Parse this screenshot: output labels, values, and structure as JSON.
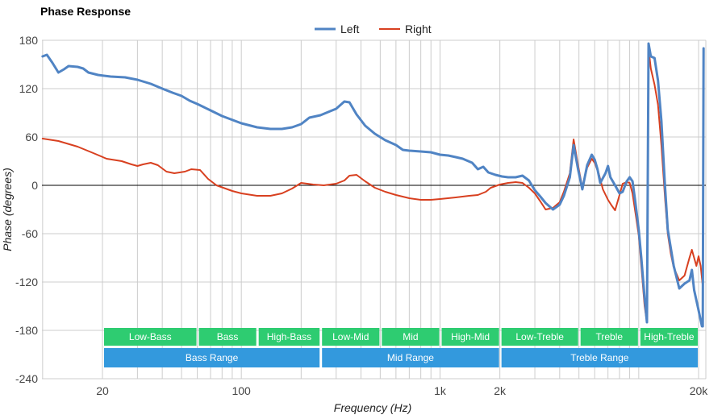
{
  "chart_data": {
    "type": "line",
    "title": "Phase Response",
    "xlabel": "Frequency (Hz)",
    "ylabel": "Phase (degrees)",
    "x_scale": "log",
    "xlim": [
      10,
      22000
    ],
    "ylim": [
      -240,
      180
    ],
    "y_ticks": [
      180,
      120,
      60,
      0,
      -60,
      -120,
      -180,
      -240
    ],
    "x_tick_labels": [
      {
        "value": 20,
        "label": "20"
      },
      {
        "value": 100,
        "label": "100"
      },
      {
        "value": 1000,
        "label": "1k"
      },
      {
        "value": 2000,
        "label": "2k"
      },
      {
        "value": 20000,
        "label": "20k"
      }
    ],
    "legend": {
      "position": "top-center",
      "entries": [
        "Left",
        "Right"
      ]
    },
    "colors": {
      "Left": "#5084c4",
      "Right": "#d84020",
      "treble_low_band": "#2ecc71",
      "range_band": "#3399dd",
      "grid": "#cccccc",
      "zero_line": "#000000"
    },
    "series": [
      {
        "name": "Left",
        "points": [
          [
            10,
            160
          ],
          [
            10.5,
            162
          ],
          [
            11.2,
            152
          ],
          [
            12,
            140
          ],
          [
            12.8,
            144
          ],
          [
            13.5,
            148
          ],
          [
            15,
            147
          ],
          [
            16,
            145
          ],
          [
            17,
            140
          ],
          [
            19,
            137
          ],
          [
            22,
            135
          ],
          [
            26,
            134
          ],
          [
            30,
            131
          ],
          [
            35,
            126
          ],
          [
            40,
            120
          ],
          [
            45,
            115
          ],
          [
            50,
            111
          ],
          [
            55,
            105
          ],
          [
            60,
            101
          ],
          [
            70,
            93
          ],
          [
            80,
            86
          ],
          [
            100,
            77
          ],
          [
            120,
            72
          ],
          [
            140,
            70
          ],
          [
            160,
            70
          ],
          [
            180,
            72
          ],
          [
            200,
            76
          ],
          [
            220,
            84
          ],
          [
            250,
            87
          ],
          [
            280,
            92
          ],
          [
            300,
            95
          ],
          [
            330,
            104
          ],
          [
            350,
            103
          ],
          [
            380,
            88
          ],
          [
            420,
            74
          ],
          [
            470,
            64
          ],
          [
            530,
            56
          ],
          [
            600,
            50
          ],
          [
            650,
            44
          ],
          [
            700,
            43
          ],
          [
            800,
            42
          ],
          [
            900,
            41
          ],
          [
            1000,
            38
          ],
          [
            1100,
            37
          ],
          [
            1200,
            35
          ],
          [
            1300,
            33
          ],
          [
            1450,
            28
          ],
          [
            1550,
            20
          ],
          [
            1650,
            23
          ],
          [
            1750,
            16
          ],
          [
            1900,
            13
          ],
          [
            2050,
            11
          ],
          [
            2200,
            10
          ],
          [
            2400,
            10
          ],
          [
            2600,
            12
          ],
          [
            2800,
            6
          ],
          [
            3000,
            -6
          ],
          [
            3200,
            -14
          ],
          [
            3400,
            -22
          ],
          [
            3700,
            -30
          ],
          [
            4000,
            -24
          ],
          [
            4200,
            -13
          ],
          [
            4500,
            10
          ],
          [
            4700,
            50
          ],
          [
            4950,
            20
          ],
          [
            5200,
            -5
          ],
          [
            5500,
            25
          ],
          [
            5800,
            38
          ],
          [
            6000,
            32
          ],
          [
            6200,
            20
          ],
          [
            6400,
            3
          ],
          [
            6800,
            15
          ],
          [
            7000,
            24
          ],
          [
            7200,
            10
          ],
          [
            7600,
            0
          ],
          [
            8000,
            -10
          ],
          [
            8300,
            -8
          ],
          [
            8700,
            5
          ],
          [
            9000,
            10
          ],
          [
            9300,
            5
          ],
          [
            9600,
            -20
          ],
          [
            10000,
            -55
          ],
          [
            10300,
            -90
          ],
          [
            10700,
            -140
          ],
          [
            11000,
            -170
          ],
          [
            11200,
            176
          ],
          [
            11500,
            160
          ],
          [
            12000,
            158
          ],
          [
            12500,
            130
          ],
          [
            13000,
            80
          ],
          [
            13500,
            5
          ],
          [
            14000,
            -55
          ],
          [
            15000,
            -100
          ],
          [
            16000,
            -128
          ],
          [
            17000,
            -122
          ],
          [
            18000,
            -118
          ],
          [
            18500,
            -105
          ],
          [
            19000,
            -130
          ],
          [
            20000,
            -155
          ],
          [
            20800,
            -175
          ],
          [
            21000,
            -175
          ],
          [
            21200,
            170
          ]
        ]
      },
      {
        "name": "Right",
        "points": [
          [
            10,
            58
          ],
          [
            12,
            55
          ],
          [
            15,
            48
          ],
          [
            18,
            40
          ],
          [
            21,
            33
          ],
          [
            25,
            30
          ],
          [
            28,
            26
          ],
          [
            30,
            24
          ],
          [
            32,
            26
          ],
          [
            35,
            28
          ],
          [
            38,
            25
          ],
          [
            42,
            17
          ],
          [
            46,
            15
          ],
          [
            52,
            17
          ],
          [
            56,
            20
          ],
          [
            62,
            19
          ],
          [
            68,
            8
          ],
          [
            75,
            0
          ],
          [
            90,
            -7
          ],
          [
            100,
            -10
          ],
          [
            120,
            -13
          ],
          [
            140,
            -13
          ],
          [
            160,
            -10
          ],
          [
            180,
            -4
          ],
          [
            200,
            3
          ],
          [
            230,
            1
          ],
          [
            260,
            0
          ],
          [
            300,
            2
          ],
          [
            330,
            6
          ],
          [
            350,
            12
          ],
          [
            380,
            13
          ],
          [
            420,
            5
          ],
          [
            470,
            -3
          ],
          [
            530,
            -8
          ],
          [
            600,
            -12
          ],
          [
            700,
            -16
          ],
          [
            800,
            -18
          ],
          [
            900,
            -18
          ],
          [
            1000,
            -17
          ],
          [
            1200,
            -15
          ],
          [
            1400,
            -13
          ],
          [
            1550,
            -12
          ],
          [
            1700,
            -8
          ],
          [
            1800,
            -3
          ],
          [
            2000,
            1
          ],
          [
            2200,
            3
          ],
          [
            2400,
            4
          ],
          [
            2600,
            3
          ],
          [
            2800,
            -3
          ],
          [
            3000,
            -10
          ],
          [
            3200,
            -20
          ],
          [
            3400,
            -30
          ],
          [
            3700,
            -28
          ],
          [
            4000,
            -21
          ],
          [
            4200,
            -8
          ],
          [
            4500,
            15
          ],
          [
            4700,
            57
          ],
          [
            4950,
            25
          ],
          [
            5200,
            -3
          ],
          [
            5500,
            22
          ],
          [
            5800,
            33
          ],
          [
            6000,
            28
          ],
          [
            6300,
            14
          ],
          [
            6600,
            -5
          ],
          [
            7000,
            -18
          ],
          [
            7300,
            -25
          ],
          [
            7600,
            -31
          ],
          [
            8000,
            -12
          ],
          [
            8300,
            2
          ],
          [
            8700,
            4
          ],
          [
            9000,
            3
          ],
          [
            9300,
            -10
          ],
          [
            9700,
            -40
          ],
          [
            10000,
            -62
          ],
          [
            10300,
            -100
          ],
          [
            10700,
            -150
          ],
          [
            11000,
            -170
          ],
          [
            11200,
            170
          ],
          [
            11500,
            145
          ],
          [
            12000,
            125
          ],
          [
            12500,
            100
          ],
          [
            13000,
            50
          ],
          [
            13600,
            -20
          ],
          [
            14000,
            -60
          ],
          [
            14500,
            -85
          ],
          [
            15000,
            -102
          ],
          [
            16000,
            -118
          ],
          [
            17000,
            -112
          ],
          [
            18000,
            -90
          ],
          [
            18500,
            -80
          ],
          [
            19000,
            -90
          ],
          [
            19500,
            -100
          ],
          [
            20000,
            -88
          ],
          [
            20500,
            -100
          ],
          [
            21000,
            -125
          ]
        ]
      }
    ],
    "range_bands": {
      "row1": [
        {
          "label": "Low-Bass",
          "from": 20,
          "to": 60
        },
        {
          "label": "Bass",
          "from": 60,
          "to": 120
        },
        {
          "label": "High-Bass",
          "from": 120,
          "to": 250
        },
        {
          "label": "Low-Mid",
          "from": 250,
          "to": 500
        },
        {
          "label": "Mid",
          "from": 500,
          "to": 1000
        },
        {
          "label": "High-Mid",
          "from": 1000,
          "to": 2000
        },
        {
          "label": "Low-Treble",
          "from": 2000,
          "to": 5000
        },
        {
          "label": "Treble",
          "from": 5000,
          "to": 10000
        },
        {
          "label": "High-Treble",
          "from": 10000,
          "to": 20000
        }
      ],
      "row2": [
        {
          "label": "Bass Range",
          "from": 20,
          "to": 250
        },
        {
          "label": "Mid Range",
          "from": 250,
          "to": 2000
        },
        {
          "label": "Treble Range",
          "from": 2000,
          "to": 20000
        }
      ]
    }
  }
}
